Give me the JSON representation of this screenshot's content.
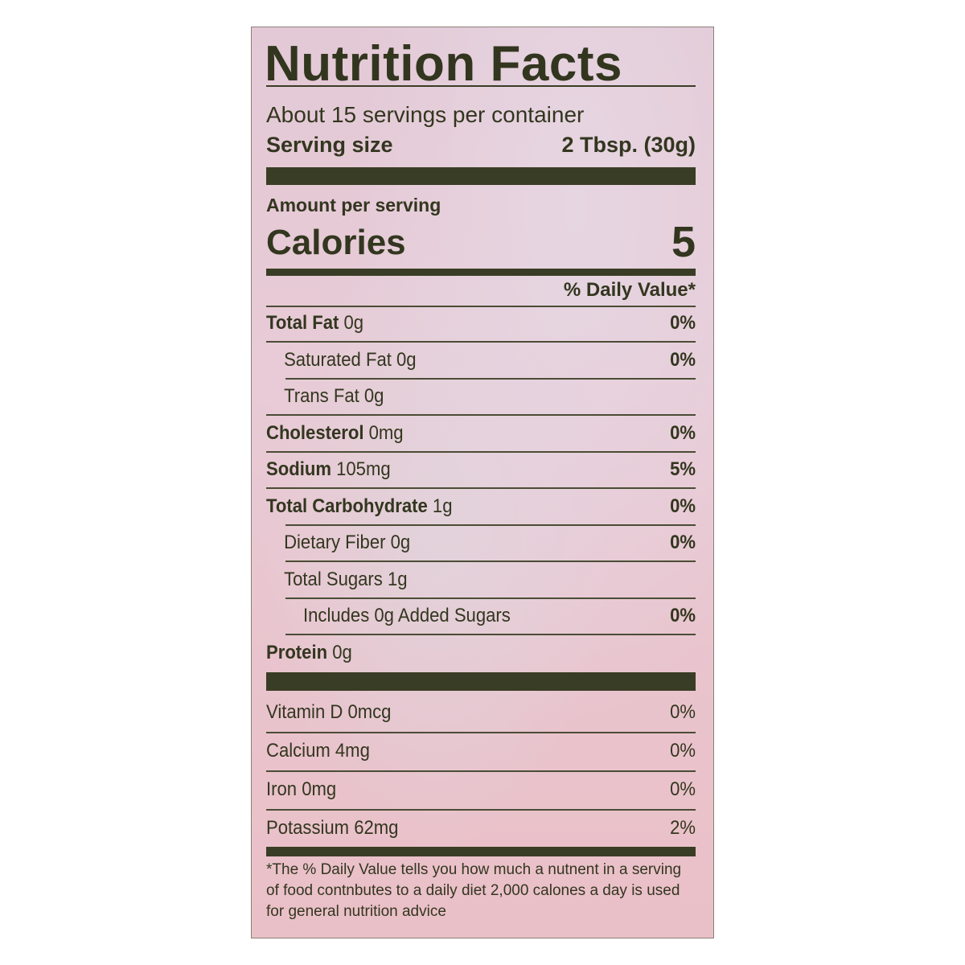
{
  "title": "Nutrition Facts",
  "servings_per_container": "About 15 servings per container",
  "serving_size_label": "Serving size",
  "serving_size_value": "2 Tbsp. (30g)",
  "amount_per_serving": "Amount per serving",
  "calories_label": "Calories",
  "calories_value": "5",
  "daily_value_header": "% Daily Value*",
  "nutrients": [
    {
      "name": "Total Fat",
      "amount": "0g",
      "dv": "0%"
    },
    {
      "name": "Saturated Fat",
      "amount": "0g",
      "dv": "0%"
    },
    {
      "name": "Trans Fat",
      "amount": "0g",
      "dv": ""
    },
    {
      "name": "Cholesterol",
      "amount": "0mg",
      "dv": "0%"
    },
    {
      "name": "Sodium",
      "amount": "105mg",
      "dv": "5%"
    },
    {
      "name": "Total Carbohydrate",
      "amount": "1g",
      "dv": "0%"
    },
    {
      "name": "Dietary Fiber",
      "amount": "0g",
      "dv": "0%"
    },
    {
      "name": "Total Sugars",
      "amount": "1g",
      "dv": ""
    },
    {
      "name": "Includes 0g Added Sugars",
      "amount": "",
      "dv": "0%"
    },
    {
      "name": "Protein",
      "amount": "0g",
      "dv": ""
    }
  ],
  "vitamins": [
    {
      "name": "Vitamin D",
      "amount": "0mcg",
      "dv": "0%"
    },
    {
      "name": "Calcium",
      "amount": "4mg",
      "dv": "0%"
    },
    {
      "name": "Iron",
      "amount": "0mg",
      "dv": "0%"
    },
    {
      "name": "Potassium",
      "amount": "62mg",
      "dv": "2%"
    }
  ],
  "footnote": "*The % Daily Value tells you how much a nutnent in a serving of food contnbutes to a daily diet 2,000 calones a day is used for general nutrition advice",
  "colors": {
    "ink": "#33361f",
    "background": "#e8c8d4"
  }
}
